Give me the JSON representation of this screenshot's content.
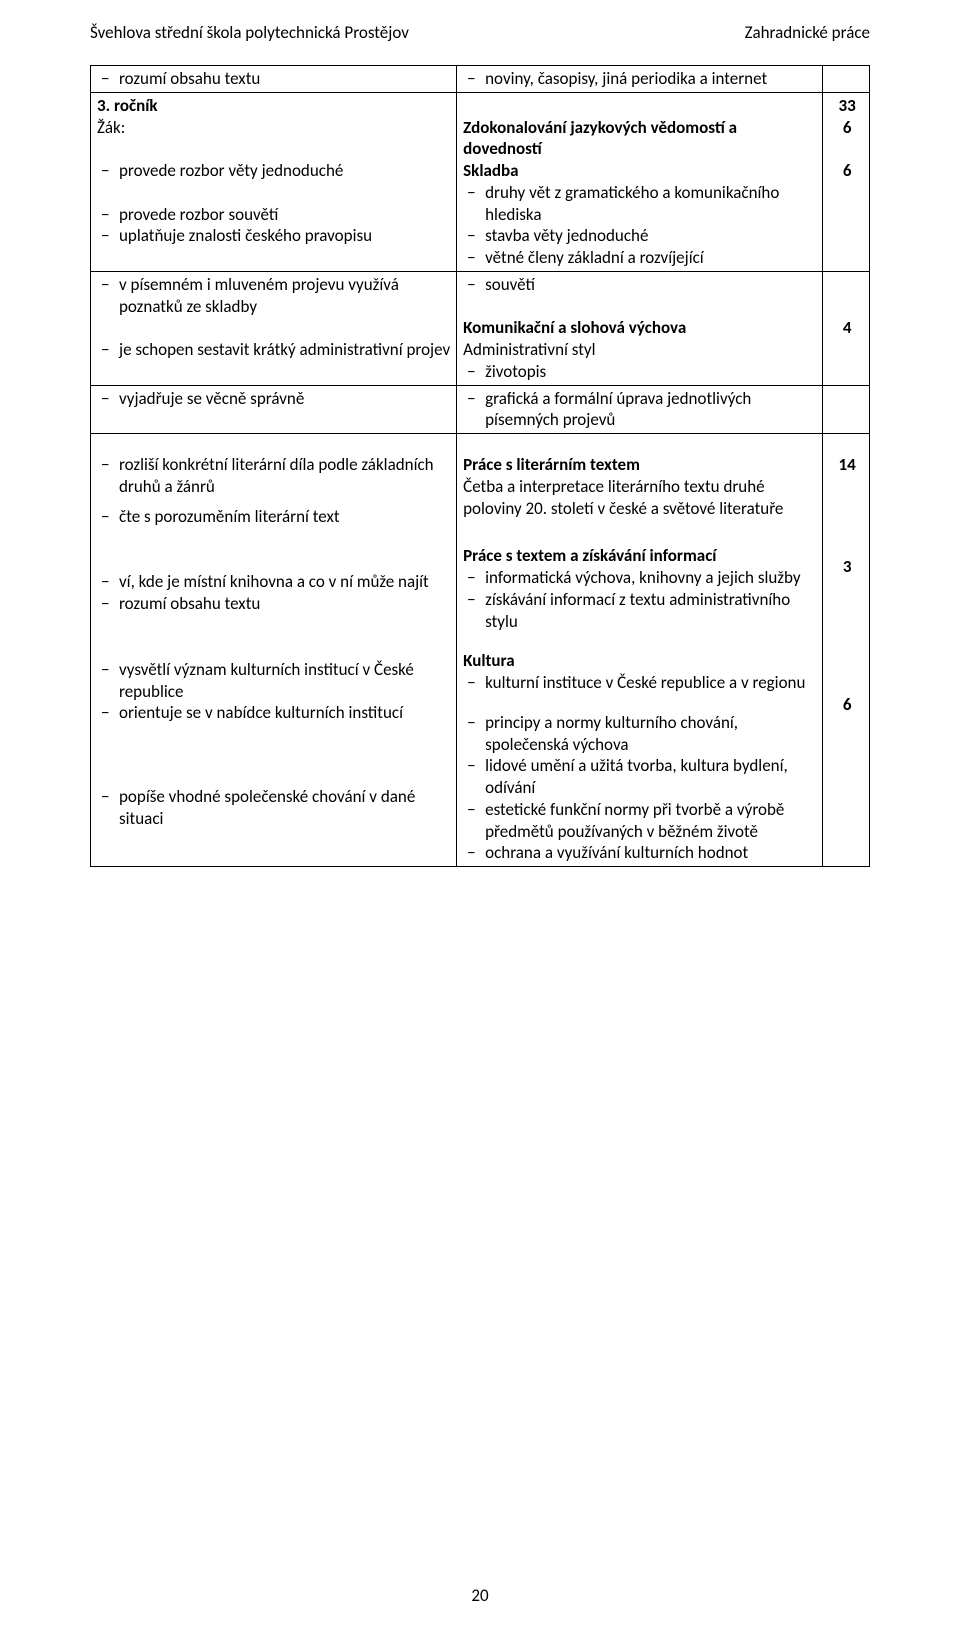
{
  "header": {
    "left": "Švehlova střední škola polytechnická Prostějov",
    "right": "Zahradnické práce"
  },
  "footer": {
    "page": "20"
  },
  "col3": {
    "a": "33",
    "b": "6",
    "c": "6",
    "d": "4",
    "e": "14",
    "f": "3",
    "g": "6"
  },
  "left": {
    "rozumi": "rozumí obsahu textu",
    "rocnik": "3. ročník",
    "zak": "Žák:",
    "rozbor_vety": "provede rozbor věty jednoduché",
    "rozbor_souveti": "provede rozbor souvětí",
    "pravopis": "uplatňuje znalosti českého pravopisu",
    "pisemny": "v písemném i mluveném projevu využívá poznatků ze skladby",
    "kratky": "je schopen sestavit krátký administrativní projev",
    "vecne": "vyjadřuje se věcně správně",
    "rozlisi": "rozliší konkrétní literární díla podle základních druhů a žánrů",
    "cte": "čte s porozuměním literární text",
    "knihovna": "ví, kde je místní knihovna a co v ní může najít",
    "rozumi2": "rozumí obsahu textu",
    "instituce": "vysvětlí význam kulturních institucí v České republice",
    "orientuje": "orientuje se v nabídce kulturních institucí",
    "popise": "popíše vhodné společenské chování v dané situaci"
  },
  "right": {
    "noviny": "noviny, časopisy, jiná periodika a internet",
    "zdokonal": "Zdokonalování jazykových vědomostí a dovedností",
    "skladba": "Skladba",
    "druhy": "druhy vět z gramatického a komunikačního hlediska",
    "stavba": "stavba věty jednoduché",
    "vetne": "větné členy základní a rozvíjející",
    "souveti": "souvětí",
    "komuslov": "Komunikační a slohová výchova",
    "admin": "Administrativní styl",
    "zivotopis": "životopis",
    "graficka": "grafická a formální úprava jednotlivých písemných projevů",
    "praceslit": "Práce s literárním textem",
    "cetba": "Četba a interpretace literárního textu druhé poloviny 20. století v české a světové literatuře",
    "pracestext": "Práce s textem a získávání informací",
    "informatika": "informatická výchova, knihovny a jejich služby",
    "ziskavani": "získávání informací z textu administrativního stylu",
    "kultura": "Kultura",
    "kulturni": "kulturní instituce v České republice a v regionu",
    "principy": "principy a normy kulturního chování, společenská výchova",
    "lidove": "lidové umění a užitá tvorba, kultura bydlení, odívání",
    "esteticke": "estetické funkční normy při tvorbě a výrobě předmětů používaných v běžném životě",
    "ochrana": "ochrana a využívání kulturních hodnot"
  }
}
